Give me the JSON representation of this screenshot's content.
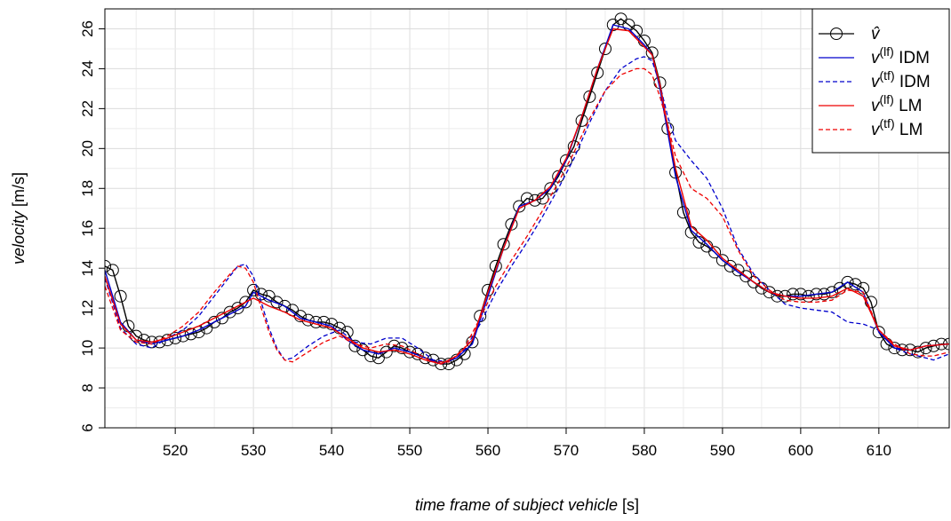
{
  "chart_data": {
    "type": "line",
    "title": "",
    "xlabel": {
      "italic": "time frame of subject vehicle",
      "unit": " [s]"
    },
    "ylabel": {
      "italic": "velocity",
      "unit": " [m/s]"
    },
    "xlim": [
      511,
      619
    ],
    "ylim": [
      6,
      27
    ],
    "xticks": [
      "520",
      "530",
      "540",
      "550",
      "560",
      "570",
      "580",
      "590",
      "600",
      "610"
    ],
    "yticks": [
      "6",
      "8",
      "10",
      "12",
      "14",
      "16",
      "18",
      "20",
      "22",
      "24",
      "26"
    ],
    "grid": true,
    "legend_placement": "top-right",
    "series": [
      {
        "key": "observed",
        "legend": {
          "base": "v̂",
          "sup": "",
          "suffix": ""
        },
        "color": "#000000",
        "style": "solid-circles",
        "x": [
          511,
          512,
          513,
          514,
          515,
          516,
          517,
          518,
          519,
          520,
          521,
          522,
          523,
          524,
          525,
          526,
          527,
          528,
          529,
          530,
          531,
          532,
          533,
          534,
          535,
          536,
          537,
          538,
          539,
          540,
          541,
          542,
          543,
          544,
          545,
          546,
          547,
          548,
          549,
          550,
          551,
          552,
          553,
          554,
          555,
          556,
          557,
          558,
          559,
          560,
          561,
          562,
          563,
          564,
          565,
          566,
          567,
          568,
          569,
          570,
          571,
          572,
          573,
          574,
          575,
          576,
          577,
          578,
          579,
          580,
          581,
          582,
          583,
          584,
          585,
          586,
          587,
          588,
          589,
          590,
          591,
          592,
          593,
          594,
          595,
          596,
          597,
          598,
          599,
          600,
          601,
          602,
          603,
          604,
          605,
          606,
          607,
          608,
          609,
          610,
          611,
          612,
          613,
          614,
          615,
          616,
          617,
          618,
          619
        ],
        "y": [
          14.1,
          13.9,
          12.6,
          11.1,
          10.6,
          10.4,
          10.3,
          10.3,
          10.4,
          10.5,
          10.6,
          10.7,
          10.8,
          11.0,
          11.3,
          11.5,
          11.8,
          12.0,
          12.3,
          12.9,
          12.7,
          12.6,
          12.3,
          12.1,
          11.9,
          11.6,
          11.4,
          11.3,
          11.3,
          11.2,
          11.0,
          10.8,
          10.1,
          9.9,
          9.6,
          9.5,
          9.8,
          10.1,
          10.0,
          9.8,
          9.7,
          9.5,
          9.4,
          9.2,
          9.2,
          9.4,
          9.7,
          10.3,
          11.6,
          12.9,
          14.1,
          15.2,
          16.2,
          17.1,
          17.5,
          17.4,
          17.5,
          18.0,
          18.6,
          19.4,
          20.1,
          21.4,
          22.6,
          23.8,
          25.0,
          26.2,
          26.5,
          26.2,
          25.9,
          25.4,
          24.8,
          23.3,
          21.0,
          18.8,
          16.8,
          15.8,
          15.3,
          15.1,
          14.8,
          14.4,
          14.1,
          13.9,
          13.6,
          13.3,
          13.0,
          12.8,
          12.6,
          12.6,
          12.7,
          12.7,
          12.6,
          12.7,
          12.7,
          12.8,
          13.0,
          13.3,
          13.2,
          13.0,
          12.3,
          10.8,
          10.2,
          10.0,
          9.9,
          9.9,
          9.8,
          10.0,
          10.1,
          10.2,
          10.2
        ]
      },
      {
        "key": "lf-idm",
        "legend": {
          "base": "v",
          "sup": "(lf)",
          "suffix": " IDM"
        },
        "color": "#0000cc",
        "style": "solid",
        "x": [
          511,
          513,
          515,
          517,
          519,
          521,
          523,
          525,
          527,
          529,
          530,
          532,
          534,
          536,
          538,
          540,
          542,
          544,
          546,
          548,
          550,
          552,
          554,
          556,
          558,
          560,
          562,
          564,
          566,
          568,
          570,
          572,
          574,
          576,
          578,
          580,
          581,
          582,
          584,
          586,
          588,
          590,
          592,
          594,
          596,
          598,
          600,
          602,
          604,
          606,
          608,
          610,
          612,
          614,
          616,
          619
        ],
        "y": [
          13.9,
          11.3,
          10.4,
          10.2,
          10.4,
          10.6,
          10.9,
          11.3,
          11.7,
          12.1,
          12.8,
          12.4,
          12.1,
          11.5,
          11.3,
          11.1,
          10.4,
          9.9,
          9.7,
          10.0,
          9.8,
          9.5,
          9.2,
          9.5,
          10.2,
          12.6,
          15.0,
          17.1,
          17.4,
          18.0,
          19.4,
          21.6,
          24.0,
          26.2,
          26.0,
          25.2,
          24.7,
          23.0,
          18.6,
          15.9,
          15.2,
          14.4,
          13.8,
          13.3,
          12.8,
          12.6,
          12.6,
          12.7,
          12.8,
          13.3,
          12.8,
          10.8,
          10.0,
          9.9,
          10.1,
          10.2
        ]
      },
      {
        "key": "tf-idm",
        "legend": {
          "base": "v",
          "sup": "(tf)",
          "suffix": " IDM"
        },
        "color": "#0000cc",
        "style": "dashed",
        "x": [
          511,
          513,
          515,
          517,
          519,
          521,
          523,
          525,
          527,
          528,
          529,
          530,
          531,
          532,
          533,
          534,
          535,
          537,
          539,
          541,
          543,
          545,
          547,
          549,
          551,
          553,
          555,
          557,
          559,
          561,
          563,
          565,
          567,
          569,
          571,
          573,
          575,
          577,
          579,
          580,
          581,
          582,
          583,
          584,
          586,
          588,
          590,
          592,
          594,
          596,
          598,
          600,
          602,
          604,
          606,
          608,
          610,
          612,
          614,
          616,
          617,
          619
        ],
        "y": [
          13.5,
          11.0,
          10.2,
          10.0,
          10.5,
          10.9,
          11.6,
          12.6,
          13.6,
          14.1,
          14.2,
          13.6,
          12.3,
          11.0,
          10.0,
          9.4,
          9.5,
          10.1,
          10.6,
          10.9,
          10.3,
          10.2,
          10.5,
          10.5,
          10.0,
          9.4,
          9.3,
          9.9,
          11.2,
          12.8,
          14.1,
          15.3,
          16.6,
          18.0,
          19.5,
          21.3,
          22.9,
          24.0,
          24.5,
          24.6,
          24.4,
          23.2,
          21.6,
          20.4,
          19.4,
          18.5,
          17.0,
          15.0,
          13.7,
          12.9,
          12.2,
          12.0,
          11.9,
          11.8,
          11.3,
          11.2,
          10.9,
          10.0,
          9.7,
          9.5,
          9.4,
          9.7
        ]
      },
      {
        "key": "lf-lm",
        "legend": {
          "base": "v",
          "sup": "(lf)",
          "suffix": " LM"
        },
        "color": "#ee0000",
        "style": "solid",
        "x": [
          511,
          513,
          515,
          517,
          519,
          521,
          523,
          525,
          527,
          529,
          530,
          532,
          534,
          536,
          538,
          540,
          542,
          544,
          546,
          548,
          550,
          552,
          554,
          556,
          558,
          560,
          562,
          564,
          566,
          568,
          570,
          572,
          574,
          576,
          578,
          580,
          581,
          582,
          584,
          586,
          588,
          590,
          592,
          594,
          596,
          598,
          600,
          602,
          604,
          606,
          608,
          610,
          612,
          614,
          616,
          619
        ],
        "y": [
          13.6,
          11.2,
          10.4,
          10.3,
          10.5,
          10.8,
          11.1,
          11.5,
          11.9,
          12.3,
          12.5,
          12.1,
          11.8,
          11.4,
          11.2,
          11.0,
          10.5,
          10.0,
          9.8,
          9.9,
          9.7,
          9.4,
          9.2,
          9.6,
          10.4,
          12.8,
          15.0,
          17.0,
          17.4,
          18.1,
          19.5,
          21.6,
          24.0,
          26.0,
          25.9,
          25.1,
          24.7,
          23.2,
          19.0,
          16.1,
          15.4,
          14.5,
          13.9,
          13.3,
          12.8,
          12.6,
          12.5,
          12.5,
          12.6,
          13.0,
          12.6,
          10.9,
          10.1,
          9.9,
          10.1,
          10.2
        ]
      },
      {
        "key": "tf-lm",
        "legend": {
          "base": "v",
          "sup": "(tf)",
          "suffix": " LM"
        },
        "color": "#ee0000",
        "style": "dashed",
        "x": [
          511,
          513,
          515,
          517,
          519,
          521,
          523,
          525,
          527,
          528,
          529,
          530,
          531,
          532,
          533,
          534,
          535,
          537,
          539,
          541,
          543,
          545,
          547,
          549,
          551,
          553,
          555,
          557,
          559,
          561,
          563,
          565,
          567,
          569,
          571,
          573,
          575,
          577,
          579,
          580,
          581,
          582,
          583,
          584,
          586,
          588,
          590,
          592,
          594,
          596,
          598,
          600,
          602,
          604,
          606,
          608,
          610,
          612,
          614,
          616,
          617,
          619
        ],
        "y": [
          13.1,
          10.9,
          10.3,
          10.2,
          10.6,
          11.1,
          11.8,
          12.8,
          13.7,
          14.1,
          14.0,
          13.3,
          12.0,
          10.8,
          9.9,
          9.4,
          9.3,
          9.8,
          10.3,
          10.6,
          10.2,
          10.0,
          10.2,
          10.1,
          9.7,
          9.3,
          9.3,
          10.0,
          11.5,
          13.1,
          14.4,
          15.6,
          16.9,
          18.3,
          19.8,
          21.5,
          22.9,
          23.7,
          24.0,
          24.0,
          23.7,
          22.6,
          21.2,
          19.6,
          18.0,
          17.5,
          16.6,
          14.9,
          13.6,
          12.9,
          12.4,
          12.3,
          12.3,
          12.4,
          12.9,
          12.8,
          10.9,
          10.2,
          9.7,
          9.6,
          9.6,
          9.8
        ]
      }
    ]
  }
}
